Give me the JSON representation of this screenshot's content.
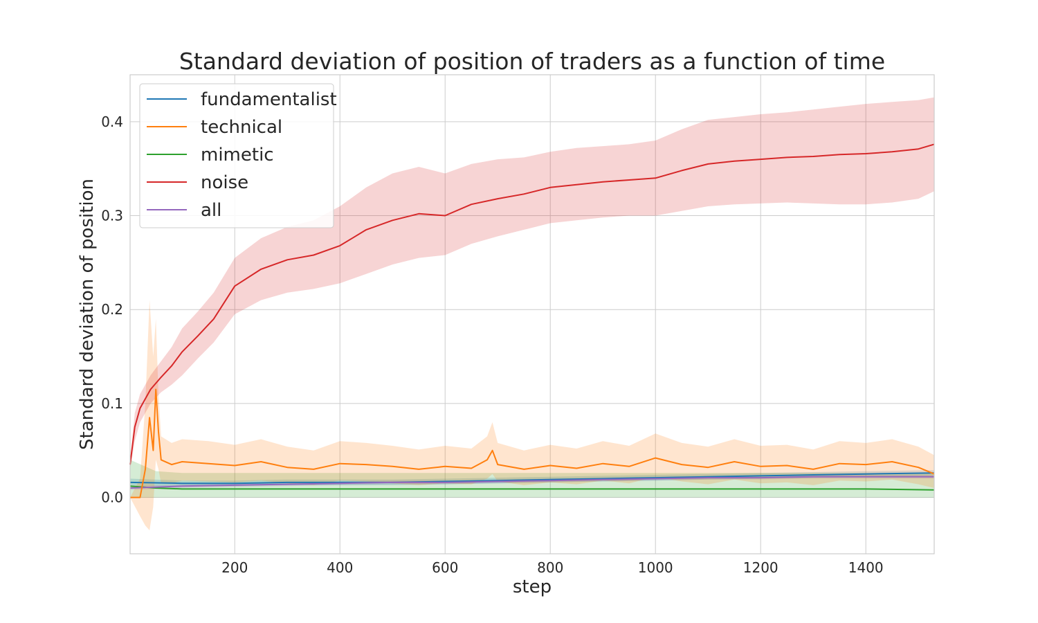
{
  "chart_data": {
    "type": "line",
    "title": "Standard deviation of position of traders as a function of time",
    "xlabel": "step",
    "ylabel": "Standard deviation of position",
    "xlim": [
      1,
      1530
    ],
    "ylim": [
      -0.06,
      0.45
    ],
    "x_ticks": [
      200,
      400,
      600,
      800,
      1000,
      1200,
      1400
    ],
    "y_ticks": [
      0.0,
      0.1,
      0.2,
      0.3,
      0.4
    ],
    "x_tick_labels": [
      "200",
      "400",
      "600",
      "800",
      "1000",
      "1200",
      "1400"
    ],
    "y_tick_labels": [
      "0.0",
      "0.1",
      "0.2",
      "0.3",
      "0.4"
    ],
    "grid": true,
    "legend_position": "upper-left",
    "series": [
      {
        "name": "fundamentalist",
        "color": "#1f77b4",
        "x": [
          1,
          100,
          200,
          300,
          400,
          500,
          600,
          700,
          800,
          900,
          1000,
          1100,
          1200,
          1300,
          1400,
          1530
        ],
        "values": [
          0.016,
          0.015,
          0.015,
          0.016,
          0.016,
          0.016,
          0.017,
          0.018,
          0.019,
          0.02,
          0.021,
          0.022,
          0.023,
          0.024,
          0.025,
          0.026
        ],
        "band_low": [
          0.012,
          0.012,
          0.012,
          0.013,
          0.013,
          0.013,
          0.014,
          0.015,
          0.016,
          0.017,
          0.018,
          0.019,
          0.02,
          0.021,
          0.022,
          0.023
        ],
        "band_high": [
          0.02,
          0.018,
          0.018,
          0.019,
          0.019,
          0.019,
          0.02,
          0.021,
          0.022,
          0.023,
          0.024,
          0.025,
          0.026,
          0.027,
          0.028,
          0.029
        ]
      },
      {
        "name": "technical",
        "color": "#ff7f0e",
        "x": [
          1,
          20,
          30,
          38,
          45,
          50,
          55,
          60,
          80,
          100,
          150,
          200,
          250,
          300,
          350,
          400,
          450,
          500,
          550,
          600,
          650,
          680,
          690,
          700,
          750,
          800,
          850,
          900,
          950,
          1000,
          1050,
          1100,
          1150,
          1200,
          1250,
          1300,
          1350,
          1400,
          1450,
          1500,
          1530
        ],
        "values": [
          0.0,
          0.0,
          0.03,
          0.085,
          0.05,
          0.115,
          0.07,
          0.04,
          0.035,
          0.038,
          0.036,
          0.034,
          0.038,
          0.032,
          0.03,
          0.036,
          0.035,
          0.033,
          0.03,
          0.033,
          0.031,
          0.04,
          0.05,
          0.035,
          0.03,
          0.034,
          0.031,
          0.036,
          0.033,
          0.042,
          0.035,
          0.032,
          0.038,
          0.033,
          0.034,
          0.03,
          0.036,
          0.035,
          0.038,
          0.032,
          0.025
        ],
        "band_low": [
          0.0,
          -0.02,
          -0.03,
          -0.035,
          -0.01,
          0.04,
          0.03,
          0.015,
          0.015,
          0.018,
          0.017,
          0.016,
          0.018,
          0.015,
          0.013,
          0.018,
          0.017,
          0.015,
          0.013,
          0.015,
          0.014,
          0.02,
          0.025,
          0.017,
          0.013,
          0.016,
          0.014,
          0.018,
          0.015,
          0.022,
          0.017,
          0.014,
          0.019,
          0.015,
          0.016,
          0.013,
          0.018,
          0.017,
          0.019,
          0.014,
          0.01
        ],
        "band_high": [
          0.0,
          0.02,
          0.1,
          0.21,
          0.15,
          0.19,
          0.11,
          0.065,
          0.058,
          0.062,
          0.06,
          0.056,
          0.062,
          0.054,
          0.05,
          0.06,
          0.058,
          0.055,
          0.051,
          0.055,
          0.052,
          0.065,
          0.08,
          0.058,
          0.05,
          0.056,
          0.052,
          0.06,
          0.055,
          0.068,
          0.058,
          0.054,
          0.062,
          0.055,
          0.056,
          0.051,
          0.06,
          0.058,
          0.062,
          0.054,
          0.045
        ]
      },
      {
        "name": "mimetic",
        "color": "#2ca02c",
        "x": [
          1,
          50,
          100,
          200,
          300,
          400,
          500,
          600,
          700,
          800,
          900,
          1000,
          1100,
          1200,
          1300,
          1400,
          1530
        ],
        "values": [
          0.012,
          0.01,
          0.009,
          0.009,
          0.009,
          0.009,
          0.009,
          0.009,
          0.009,
          0.009,
          0.009,
          0.009,
          0.009,
          0.009,
          0.009,
          0.009,
          0.008
        ],
        "band_low": [
          0.0,
          0.0,
          0.0,
          0.0,
          0.0,
          0.0,
          0.0,
          0.0,
          0.0,
          0.0,
          0.0,
          0.0,
          0.0,
          0.0,
          0.0,
          0.0,
          0.0
        ],
        "band_high": [
          0.04,
          0.028,
          0.026,
          0.026,
          0.026,
          0.026,
          0.026,
          0.026,
          0.026,
          0.026,
          0.026,
          0.026,
          0.026,
          0.026,
          0.026,
          0.026,
          0.026
        ]
      },
      {
        "name": "noise",
        "color": "#d62728",
        "x": [
          1,
          10,
          20,
          40,
          60,
          80,
          100,
          130,
          160,
          200,
          250,
          300,
          350,
          400,
          450,
          500,
          550,
          600,
          650,
          700,
          750,
          800,
          850,
          900,
          950,
          1000,
          1050,
          1100,
          1150,
          1200,
          1250,
          1300,
          1350,
          1400,
          1450,
          1500,
          1530
        ],
        "values": [
          0.035,
          0.075,
          0.095,
          0.115,
          0.128,
          0.14,
          0.155,
          0.172,
          0.19,
          0.225,
          0.243,
          0.253,
          0.258,
          0.268,
          0.285,
          0.295,
          0.302,
          0.3,
          0.312,
          0.318,
          0.323,
          0.33,
          0.333,
          0.336,
          0.338,
          0.34,
          0.348,
          0.355,
          0.358,
          0.36,
          0.362,
          0.363,
          0.365,
          0.366,
          0.368,
          0.371,
          0.376
        ],
        "band_low": [
          0.03,
          0.06,
          0.08,
          0.1,
          0.112,
          0.12,
          0.13,
          0.148,
          0.165,
          0.195,
          0.21,
          0.218,
          0.222,
          0.228,
          0.238,
          0.248,
          0.255,
          0.258,
          0.27,
          0.278,
          0.285,
          0.292,
          0.295,
          0.298,
          0.3,
          0.3,
          0.305,
          0.31,
          0.312,
          0.313,
          0.314,
          0.313,
          0.312,
          0.312,
          0.314,
          0.318,
          0.326
        ],
        "band_high": [
          0.04,
          0.09,
          0.11,
          0.13,
          0.145,
          0.16,
          0.18,
          0.198,
          0.218,
          0.255,
          0.276,
          0.288,
          0.295,
          0.31,
          0.33,
          0.345,
          0.352,
          0.345,
          0.355,
          0.36,
          0.362,
          0.368,
          0.372,
          0.374,
          0.376,
          0.38,
          0.392,
          0.402,
          0.405,
          0.408,
          0.41,
          0.413,
          0.416,
          0.419,
          0.421,
          0.423,
          0.426
        ]
      },
      {
        "name": "all",
        "color": "#9467bd",
        "x": [
          1,
          100,
          200,
          300,
          400,
          500,
          600,
          700,
          800,
          900,
          1000,
          1100,
          1200,
          1300,
          1400,
          1530
        ],
        "values": [
          0.01,
          0.012,
          0.013,
          0.014,
          0.015,
          0.016,
          0.016,
          0.017,
          0.018,
          0.019,
          0.02,
          0.021,
          0.021,
          0.022,
          0.022,
          0.022
        ],
        "band_low": [
          0.008,
          0.01,
          0.011,
          0.012,
          0.013,
          0.014,
          0.014,
          0.015,
          0.016,
          0.017,
          0.018,
          0.019,
          0.019,
          0.02,
          0.02,
          0.02
        ],
        "band_high": [
          0.012,
          0.014,
          0.015,
          0.016,
          0.017,
          0.018,
          0.018,
          0.019,
          0.02,
          0.021,
          0.022,
          0.023,
          0.023,
          0.024,
          0.024,
          0.024
        ]
      }
    ]
  }
}
